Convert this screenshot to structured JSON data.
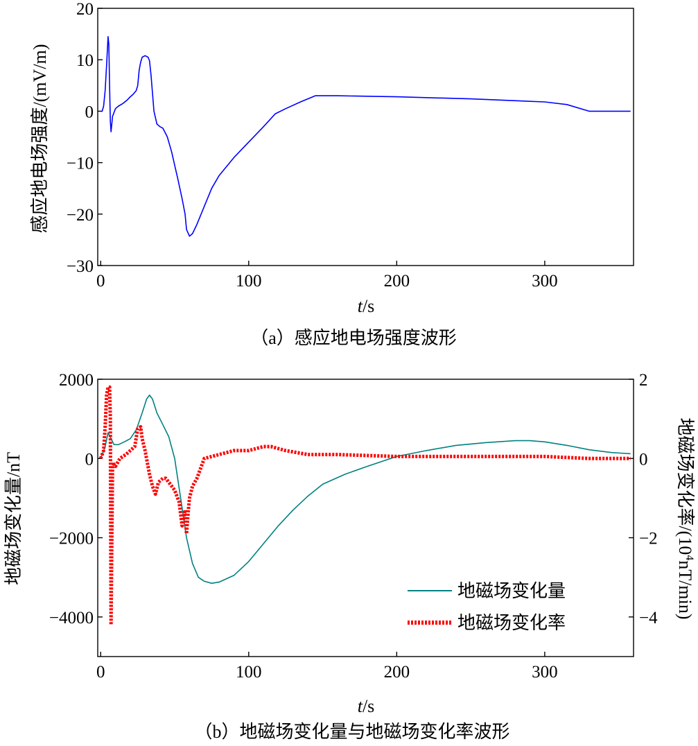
{
  "chart_data": [
    {
      "type": "line",
      "caption": "（a）感应地电场强度波形",
      "xlabel_var": "t",
      "xlabel_unit": "/s",
      "ylabel": "感应地电场强度/(mV/m)",
      "xlim": [
        -2,
        360
      ],
      "ylim": [
        -30,
        20
      ],
      "xticks": [
        0,
        100,
        200,
        300
      ],
      "yticks": [
        -30,
        -20,
        -10,
        0,
        10,
        20
      ],
      "color": "#0000ff",
      "series": [
        {
          "x": [
            0,
            1,
            2,
            3,
            4,
            5,
            5.5,
            6,
            6.5,
            7,
            8,
            10,
            12,
            15,
            18,
            20,
            22,
            24,
            25,
            26,
            27,
            28,
            30,
            32,
            33,
            34,
            36,
            38,
            40,
            42,
            45,
            48,
            50,
            52,
            55,
            57,
            58,
            60,
            62,
            65,
            70,
            75,
            80,
            90,
            100,
            110,
            118,
            125,
            135,
            145,
            160,
            200,
            250,
            300,
            315,
            330,
            345,
            358
          ],
          "y": [
            0,
            0,
            1,
            4,
            9,
            14.5,
            13,
            5,
            -2,
            -4,
            -1,
            0.5,
            1,
            1.5,
            2.2,
            2.8,
            3.3,
            4,
            5,
            8,
            9.5,
            10.5,
            10.8,
            10.5,
            9.8,
            7,
            0,
            -2.5,
            -3,
            -3.3,
            -5,
            -8,
            -10.5,
            -13,
            -17,
            -20,
            -23,
            -24.3,
            -23.8,
            -22,
            -18.5,
            -15,
            -12.5,
            -9,
            -6,
            -3,
            -0.5,
            0.5,
            1.8,
            3,
            3,
            2.8,
            2.4,
            1.8,
            1.3,
            0,
            0,
            0
          ]
        }
      ]
    },
    {
      "type": "line",
      "caption": "（b）地磁场变化量与地磁场变化率波形",
      "xlabel_var": "t",
      "xlabel_unit": "/s",
      "ylabel_left": "地磁场变化量/nT",
      "ylabel_right_pre": "地磁场变化率/(10",
      "ylabel_right_sup": "4",
      "ylabel_right_post": "nT/min)",
      "xlim": [
        -2,
        360
      ],
      "ylim_left": [
        -5000,
        2000
      ],
      "ylim_right": [
        -5,
        2
      ],
      "xticks": [
        0,
        100,
        200,
        300
      ],
      "yticks_left": [
        -4000,
        -2000,
        0,
        2000
      ],
      "yticks_left_labels": [
        "-4000",
        "-2000",
        "0",
        "2000"
      ],
      "yticks_right": [
        -4,
        -2,
        0,
        2
      ],
      "yticks_right_labels": [
        "-4",
        "-2",
        "0",
        "2"
      ],
      "legend_position": "lower-right",
      "series": [
        {
          "name": "地磁场变化量",
          "axis": "left",
          "color": "#008080",
          "style": "solid",
          "x": [
            0,
            3,
            5,
            7,
            9,
            12,
            16,
            20,
            24,
            28,
            31,
            33,
            35,
            38,
            42,
            46,
            50,
            54,
            58,
            62,
            66,
            70,
            75,
            80,
            90,
            100,
            110,
            120,
            130,
            140,
            150,
            165,
            180,
            200,
            220,
            240,
            260,
            280,
            290,
            300,
            315,
            330,
            345,
            358
          ],
          "y": [
            0,
            300,
            650,
            500,
            350,
            350,
            420,
            500,
            720,
            1150,
            1500,
            1600,
            1500,
            1150,
            850,
            550,
            0,
            -1000,
            -2000,
            -2650,
            -3000,
            -3100,
            -3150,
            -3120,
            -2950,
            -2600,
            -2150,
            -1700,
            -1300,
            -950,
            -650,
            -400,
            -200,
            50,
            200,
            330,
            400,
            450,
            450,
            420,
            330,
            220,
            150,
            120
          ]
        },
        {
          "name": "地磁场变化率",
          "axis": "right",
          "color": "#ff0000",
          "style": "dotted",
          "x": [
            0,
            2,
            3,
            4,
            5,
            6,
            6.5,
            7,
            8,
            10,
            13,
            17,
            20,
            23,
            25,
            27,
            28,
            30,
            33,
            35,
            37,
            39,
            42,
            44,
            46,
            48,
            50,
            53,
            55,
            57,
            58,
            59,
            60,
            62,
            65,
            70,
            80,
            90,
            100,
            110,
            115,
            125,
            140,
            160,
            200,
            250,
            300,
            330,
            358
          ],
          "y": [
            0,
            0.2,
            0.8,
            1.6,
            1.8,
            1.8,
            1.0,
            -4.2,
            -0.1,
            -0.2,
            0,
            0.1,
            0.2,
            0.3,
            0.75,
            0.8,
            0.5,
            0.2,
            -0.4,
            -0.7,
            -0.9,
            -0.6,
            -0.5,
            -0.5,
            -0.6,
            -0.7,
            -0.8,
            -1.1,
            -1.7,
            -1.3,
            -1.9,
            -1.4,
            -1.0,
            -0.7,
            -0.5,
            0.0,
            0.1,
            0.2,
            0.2,
            0.3,
            0.3,
            0.2,
            0.1,
            0.1,
            0.05,
            0.05,
            0.05,
            0,
            0
          ]
        }
      ]
    }
  ]
}
